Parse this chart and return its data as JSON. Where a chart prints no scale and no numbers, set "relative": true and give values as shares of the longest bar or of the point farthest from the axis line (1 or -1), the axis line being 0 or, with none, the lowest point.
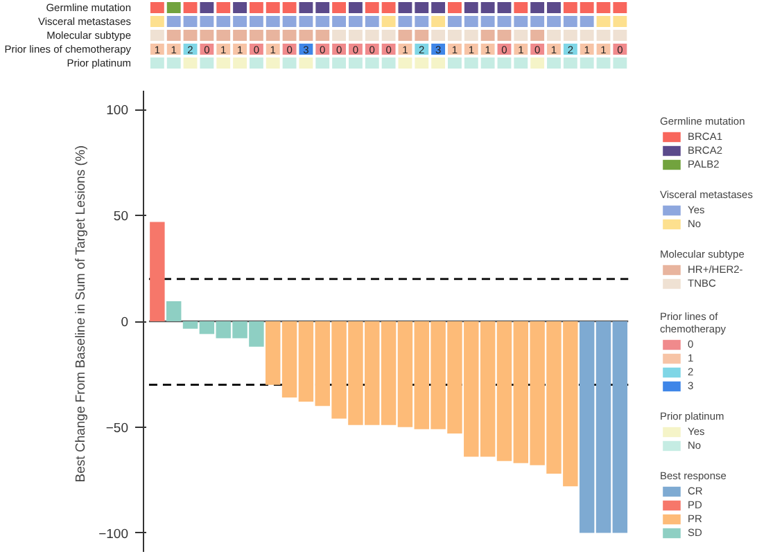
{
  "chart_data": [
    {
      "type": "bar",
      "relative": true,
      "stacked": true,
      "categories": [
        null,
        null,
        null,
        null,
        null,
        null,
        null,
        null,
        null,
        null,
        null,
        null,
        null,
        null,
        null,
        null,
        null,
        null,
        null,
        null,
        null,
        null,
        null,
        null,
        null,
        null,
        null,
        null,
        null
      ],
      "ylabel": "Germline mutation",
      "legend_title": "Germline mutation",
      "legend": "right",
      "series": [
        {
          "name": "BRCA1",
          "color": "#f8665c",
          "values": [
            1,
            null,
            1,
            null,
            1,
            null,
            1,
            1,
            1,
            null,
            null,
            1,
            null,
            1,
            1,
            null,
            null,
            null,
            1,
            null,
            null,
            null,
            1,
            null,
            null,
            1,
            1,
            1,
            1
          ]
        },
        {
          "name": "BRCA2",
          "color": "#5b4a8b",
          "values": [
            null,
            null,
            null,
            1,
            null,
            1,
            null,
            null,
            null,
            1,
            1,
            null,
            1,
            null,
            null,
            1,
            1,
            1,
            null,
            1,
            1,
            1,
            null,
            1,
            1,
            null,
            null,
            null,
            null
          ]
        },
        {
          "name": "PALB2",
          "color": "#72a33e",
          "values": [
            null,
            1,
            null,
            null,
            null,
            null,
            null,
            null,
            null,
            null,
            null,
            null,
            null,
            null,
            null,
            null,
            null,
            null,
            null,
            null,
            null,
            null,
            null,
            null,
            null,
            null,
            null,
            null,
            null
          ]
        }
      ]
    },
    {
      "type": "bar",
      "relative": true,
      "stacked": true,
      "categories": [
        null,
        null,
        null,
        null,
        null,
        null,
        null,
        null,
        null,
        null,
        null,
        null,
        null,
        null,
        null,
        null,
        null,
        null,
        null,
        null,
        null,
        null,
        null,
        null,
        null,
        null,
        null,
        null,
        null
      ],
      "ylabel": "Visceral metastases",
      "legend_title": "Visceral metastases",
      "legend": "right",
      "series": [
        {
          "name": "Yes",
          "color": "#8ea7de",
          "values": [
            null,
            1,
            1,
            1,
            1,
            1,
            1,
            1,
            1,
            1,
            1,
            1,
            1,
            1,
            null,
            1,
            1,
            null,
            1,
            1,
            1,
            1,
            1,
            1,
            1,
            1,
            1,
            null,
            null
          ]
        },
        {
          "name": "No",
          "color": "#fde08e",
          "values": [
            1,
            null,
            null,
            null,
            null,
            null,
            null,
            null,
            null,
            null,
            null,
            null,
            null,
            null,
            1,
            null,
            null,
            1,
            null,
            null,
            null,
            null,
            null,
            null,
            null,
            null,
            null,
            1,
            1
          ]
        }
      ]
    },
    {
      "type": "bar",
      "relative": true,
      "stacked": true,
      "categories": [
        null,
        null,
        null,
        null,
        null,
        null,
        null,
        null,
        null,
        null,
        null,
        null,
        null,
        null,
        null,
        null,
        null,
        null,
        null,
        null,
        null,
        null,
        null,
        null,
        null,
        null,
        null,
        null,
        null
      ],
      "ylabel": "Molecular subtype",
      "legend_title": "Molecular subtype",
      "legend": "right",
      "series": [
        {
          "name": "HR+/HER2-",
          "color": "#e8b49e",
          "values": [
            null,
            1,
            1,
            1,
            1,
            1,
            1,
            1,
            1,
            1,
            1,
            null,
            null,
            null,
            null,
            1,
            1,
            null,
            null,
            null,
            1,
            1,
            null,
            1,
            null,
            null,
            null,
            null,
            null
          ]
        },
        {
          "name": "TNBC",
          "color": "#efe1d3",
          "values": [
            1,
            null,
            null,
            null,
            null,
            null,
            null,
            null,
            null,
            null,
            null,
            1,
            1,
            1,
            1,
            null,
            null,
            1,
            1,
            1,
            null,
            null,
            1,
            null,
            1,
            1,
            1,
            1,
            1
          ]
        }
      ]
    },
    {
      "type": "bar",
      "relative": true,
      "stacked": true,
      "categories": [
        null,
        null,
        null,
        null,
        null,
        null,
        null,
        null,
        null,
        null,
        null,
        null,
        null,
        null,
        null,
        null,
        null,
        null,
        null,
        null,
        null,
        null,
        null,
        null,
        null,
        null,
        null,
        null,
        null
      ],
      "ylabel": "Prior lines of chemotherapy",
      "legend_title": "Prior lines of chemotherapy",
      "legend": "right",
      "annotations": [
        "1",
        "1",
        "2",
        "0",
        "1",
        "1",
        "0",
        "1",
        "0",
        "3",
        "0",
        "0",
        "0",
        "0",
        "0",
        "1",
        "2",
        "3",
        "1",
        "1",
        "1",
        "0",
        "1",
        "0",
        "1",
        "2",
        "1",
        "1",
        "0"
      ],
      "series": [
        {
          "name": "0",
          "color": "#f08a8c",
          "values": [
            null,
            null,
            null,
            1,
            null,
            null,
            1,
            null,
            1,
            null,
            1,
            1,
            1,
            1,
            1,
            null,
            null,
            null,
            null,
            null,
            null,
            1,
            null,
            1,
            null,
            null,
            null,
            null,
            1
          ]
        },
        {
          "name": "1",
          "color": "#f7c4a6",
          "values": [
            1,
            1,
            null,
            null,
            1,
            1,
            null,
            1,
            null,
            null,
            null,
            null,
            null,
            null,
            null,
            1,
            null,
            null,
            1,
            1,
            1,
            null,
            1,
            null,
            1,
            null,
            1,
            1,
            null
          ]
        },
        {
          "name": "2",
          "color": "#7fd6e6",
          "values": [
            null,
            null,
            1,
            null,
            null,
            null,
            null,
            null,
            null,
            null,
            null,
            null,
            null,
            null,
            null,
            null,
            1,
            null,
            null,
            null,
            null,
            null,
            null,
            null,
            null,
            1,
            null,
            null,
            null
          ]
        },
        {
          "name": "3",
          "color": "#3f86e8",
          "values": [
            null,
            null,
            null,
            null,
            null,
            null,
            null,
            null,
            null,
            1,
            null,
            null,
            null,
            null,
            null,
            null,
            null,
            1,
            null,
            null,
            null,
            null,
            null,
            null,
            null,
            null,
            null,
            null,
            null
          ]
        }
      ]
    },
    {
      "type": "bar",
      "relative": true,
      "stacked": true,
      "categories": [
        null,
        null,
        null,
        null,
        null,
        null,
        null,
        null,
        null,
        null,
        null,
        null,
        null,
        null,
        null,
        null,
        null,
        null,
        null,
        null,
        null,
        null,
        null,
        null,
        null,
        null,
        null,
        null,
        null
      ],
      "ylabel": "Prior platinum",
      "legend_title": "Prior platinum",
      "legend": "right",
      "series": [
        {
          "name": "Yes",
          "color": "#f5f4c8",
          "values": [
            null,
            null,
            1,
            null,
            1,
            1,
            null,
            1,
            null,
            1,
            null,
            null,
            null,
            null,
            null,
            1,
            1,
            1,
            null,
            null,
            null,
            null,
            null,
            1,
            null,
            null,
            null,
            null,
            null
          ]
        },
        {
          "name": "No",
          "color": "#c5ece3",
          "values": [
            1,
            1,
            null,
            1,
            null,
            null,
            1,
            null,
            1,
            null,
            1,
            1,
            1,
            1,
            1,
            null,
            null,
            null,
            1,
            1,
            1,
            1,
            1,
            null,
            1,
            1,
            1,
            1,
            1
          ]
        }
      ]
    },
    {
      "type": "bar",
      "stacked": true,
      "categories": [
        null,
        null,
        null,
        null,
        null,
        null,
        null,
        null,
        null,
        null,
        null,
        null,
        null,
        null,
        null,
        null,
        null,
        null,
        null,
        null,
        null,
        null,
        null,
        null,
        null,
        null,
        null,
        null,
        null
      ],
      "ylabel": "Best Change From Baseline in Sum of Target Lesions (%)",
      "ylim": [
        -109,
        109
      ],
      "yticks": [
        -100,
        -50,
        0,
        50,
        100
      ],
      "grid": false,
      "legend_title": "Best response",
      "legend": "right",
      "tick_labels": "y",
      "series": [
        {
          "name": "CR",
          "color": "#7eaad2",
          "values": [
            null,
            null,
            null,
            null,
            null,
            null,
            null,
            null,
            null,
            null,
            null,
            null,
            null,
            null,
            null,
            null,
            null,
            null,
            null,
            null,
            null,
            null,
            null,
            null,
            null,
            null,
            -100,
            -100,
            -100
          ]
        },
        {
          "name": "PD",
          "color": "#f6776a",
          "values": [
            47,
            null,
            null,
            null,
            null,
            null,
            null,
            null,
            null,
            null,
            null,
            null,
            null,
            null,
            null,
            null,
            null,
            null,
            null,
            null,
            null,
            null,
            null,
            null,
            null,
            null,
            null,
            null,
            null
          ]
        },
        {
          "name": "PR",
          "color": "#fdbb78",
          "values": [
            null,
            null,
            null,
            null,
            null,
            null,
            null,
            -30,
            -36,
            -38,
            -40,
            -46,
            -49,
            -49,
            -49,
            -50,
            -51,
            -51,
            -53,
            -64,
            -64,
            -66,
            -67,
            -68,
            -72,
            -78,
            null,
            null,
            null
          ]
        },
        {
          "name": "SD",
          "color": "#8ecfc3",
          "values": [
            null,
            9.5,
            -3.5,
            -6,
            -8,
            -8,
            -12,
            null,
            null,
            null,
            null,
            null,
            null,
            null,
            null,
            null,
            null,
            null,
            null,
            null,
            null,
            null,
            null,
            null,
            null,
            null,
            null,
            null,
            null
          ]
        }
      ],
      "ref_lines": [
        {
          "axis": "y",
          "value": 0,
          "color": "#555555",
          "line_style": "solid"
        },
        {
          "axis": "y",
          "value": 20,
          "color": "#000000",
          "line_style": "dashed"
        },
        {
          "axis": "y",
          "value": -30,
          "color": "#000000",
          "line_style": "dashed"
        }
      ]
    }
  ]
}
